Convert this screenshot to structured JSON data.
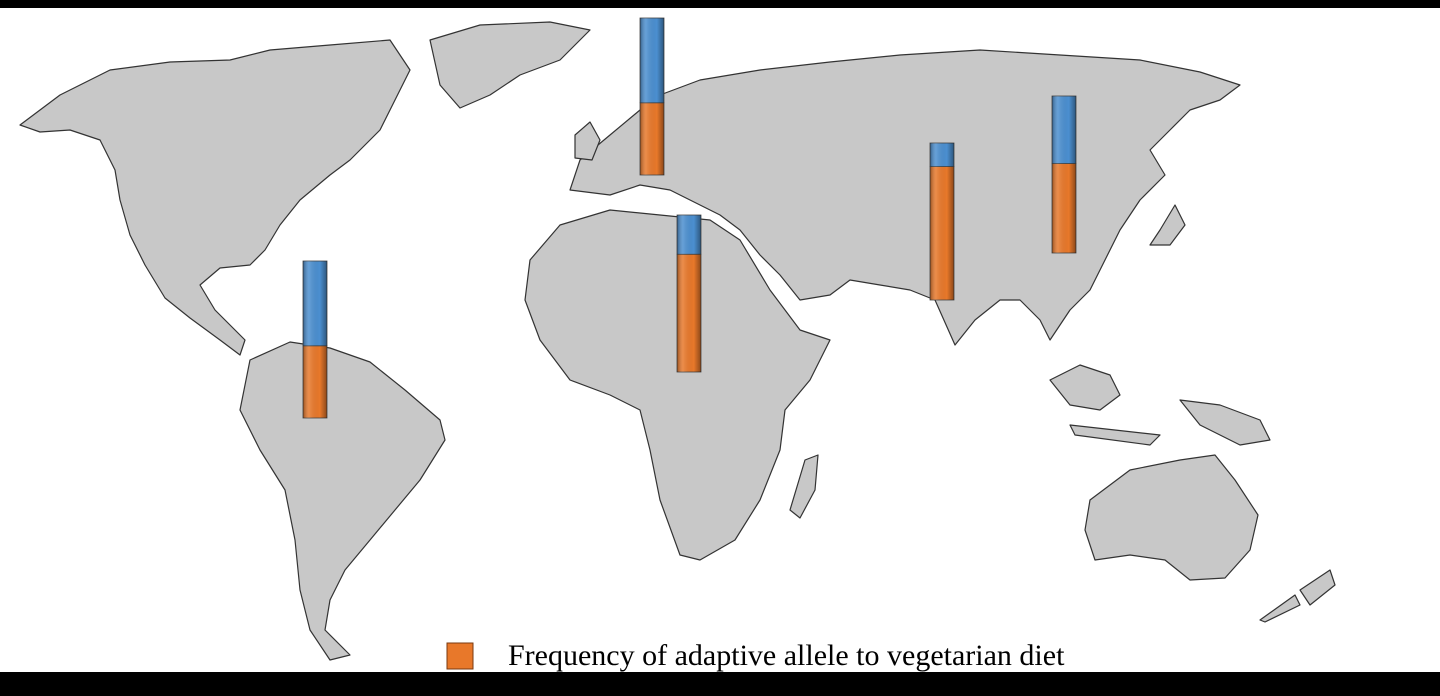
{
  "chart_data": {
    "type": "bar",
    "categories": [
      null,
      null,
      null,
      null,
      null
    ],
    "series": [
      {
        "name": "Frequency of adaptive allele to vegetarian diet",
        "color": "#e8782a",
        "values": [
          0.46,
          0.46,
          0.75,
          0.85,
          0.57
        ]
      },
      {
        "color": "#4b8fd0",
        "values": [
          0.54,
          0.54,
          0.25,
          0.15,
          0.43
        ]
      }
    ],
    "ylim": [
      0,
      1
    ]
  }
}
